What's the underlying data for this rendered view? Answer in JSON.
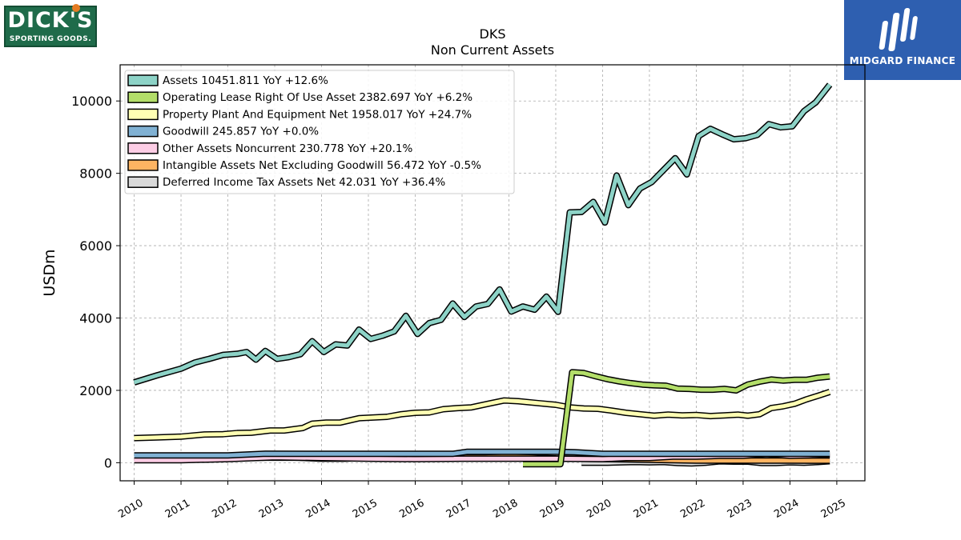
{
  "logos": {
    "left_big": "DICK'S",
    "left_small": "SPORTING GOODS.",
    "right_name": "MIDGARD FINANCE"
  },
  "chart_data": {
    "type": "line",
    "title": "DKS",
    "subtitle": "Non Current  Assets",
    "ylabel": "USDm",
    "xlabel": "",
    "xlim": [
      2009.7,
      2025.6
    ],
    "ylim": [
      -500,
      11000
    ],
    "yticks": [
      0,
      2000,
      4000,
      6000,
      8000,
      10000
    ],
    "xticks": [
      2010,
      2011,
      2012,
      2013,
      2014,
      2015,
      2016,
      2017,
      2018,
      2019,
      2020,
      2021,
      2022,
      2023,
      2024,
      2025
    ],
    "grid": true,
    "legend_position": "top-left",
    "series": [
      {
        "name": "Assets",
        "legend": "Assets  10451.811 YoY +12.6%",
        "color": "#8dd3c7",
        "points": [
          [
            2010.0,
            2220
          ],
          [
            2010.5,
            2420
          ],
          [
            2011.0,
            2600
          ],
          [
            2011.3,
            2770
          ],
          [
            2011.6,
            2870
          ],
          [
            2011.9,
            2980
          ],
          [
            2012.2,
            3010
          ],
          [
            2012.4,
            3060
          ],
          [
            2012.6,
            2850
          ],
          [
            2012.8,
            3090
          ],
          [
            2013.05,
            2870
          ],
          [
            2013.3,
            2920
          ],
          [
            2013.55,
            3000
          ],
          [
            2013.8,
            3360
          ],
          [
            2014.05,
            3060
          ],
          [
            2014.3,
            3270
          ],
          [
            2014.55,
            3240
          ],
          [
            2014.8,
            3680
          ],
          [
            2015.05,
            3420
          ],
          [
            2015.3,
            3510
          ],
          [
            2015.55,
            3630
          ],
          [
            2015.8,
            4060
          ],
          [
            2016.05,
            3560
          ],
          [
            2016.3,
            3860
          ],
          [
            2016.55,
            3950
          ],
          [
            2016.8,
            4400
          ],
          [
            2017.05,
            4030
          ],
          [
            2017.3,
            4320
          ],
          [
            2017.55,
            4390
          ],
          [
            2017.8,
            4790
          ],
          [
            2018.05,
            4180
          ],
          [
            2018.3,
            4320
          ],
          [
            2018.55,
            4230
          ],
          [
            2018.8,
            4590
          ],
          [
            2019.05,
            4170
          ],
          [
            2019.3,
            6920
          ],
          [
            2019.55,
            6930
          ],
          [
            2019.8,
            7210
          ],
          [
            2020.05,
            6640
          ],
          [
            2020.3,
            7940
          ],
          [
            2020.55,
            7120
          ],
          [
            2020.8,
            7580
          ],
          [
            2021.05,
            7760
          ],
          [
            2021.3,
            8090
          ],
          [
            2021.55,
            8420
          ],
          [
            2021.8,
            7970
          ],
          [
            2022.05,
            9030
          ],
          [
            2022.3,
            9230
          ],
          [
            2022.55,
            9080
          ],
          [
            2022.8,
            8940
          ],
          [
            2023.05,
            8970
          ],
          [
            2023.3,
            9060
          ],
          [
            2023.55,
            9360
          ],
          [
            2023.8,
            9270
          ],
          [
            2024.05,
            9300
          ],
          [
            2024.3,
            9720
          ],
          [
            2024.55,
            9960
          ],
          [
            2024.85,
            10452
          ]
        ]
      },
      {
        "name": "Operating Lease Right Of Use Asset",
        "legend": "Operating Lease Right Of Use Asset  2382.697 YoY +6.2%",
        "color": "#b3de69",
        "points": [
          [
            2018.3,
            -40
          ],
          [
            2018.55,
            -40
          ],
          [
            2018.8,
            -40
          ],
          [
            2019.1,
            -40
          ],
          [
            2019.35,
            2500
          ],
          [
            2019.6,
            2480
          ],
          [
            2019.85,
            2390
          ],
          [
            2020.1,
            2310
          ],
          [
            2020.35,
            2250
          ],
          [
            2020.6,
            2200
          ],
          [
            2020.85,
            2160
          ],
          [
            2021.1,
            2140
          ],
          [
            2021.35,
            2130
          ],
          [
            2021.6,
            2050
          ],
          [
            2021.85,
            2040
          ],
          [
            2022.1,
            2020
          ],
          [
            2022.35,
            2020
          ],
          [
            2022.6,
            2040
          ],
          [
            2022.85,
            2000
          ],
          [
            2023.1,
            2160
          ],
          [
            2023.35,
            2240
          ],
          [
            2023.6,
            2300
          ],
          [
            2023.85,
            2270
          ],
          [
            2024.1,
            2290
          ],
          [
            2024.35,
            2290
          ],
          [
            2024.6,
            2350
          ],
          [
            2024.85,
            2383
          ]
        ]
      },
      {
        "name": "Property Plant And Equipment Net",
        "legend": "Property Plant And Equipment Net  1958.017 YoY +24.7%",
        "color": "#ffffb3",
        "points": [
          [
            2010.0,
            680
          ],
          [
            2010.5,
            700
          ],
          [
            2011.0,
            720
          ],
          [
            2011.5,
            780
          ],
          [
            2011.9,
            790
          ],
          [
            2012.2,
            820
          ],
          [
            2012.5,
            830
          ],
          [
            2012.9,
            890
          ],
          [
            2013.2,
            890
          ],
          [
            2013.6,
            960
          ],
          [
            2013.8,
            1080
          ],
          [
            2014.1,
            1110
          ],
          [
            2014.4,
            1110
          ],
          [
            2014.8,
            1230
          ],
          [
            2015.1,
            1250
          ],
          [
            2015.4,
            1270
          ],
          [
            2015.7,
            1340
          ],
          [
            2016.0,
            1380
          ],
          [
            2016.3,
            1390
          ],
          [
            2016.6,
            1480
          ],
          [
            2016.9,
            1510
          ],
          [
            2017.2,
            1530
          ],
          [
            2017.6,
            1640
          ],
          [
            2017.9,
            1720
          ],
          [
            2018.2,
            1700
          ],
          [
            2018.6,
            1650
          ],
          [
            2019.0,
            1600
          ],
          [
            2019.3,
            1530
          ],
          [
            2019.6,
            1500
          ],
          [
            2019.9,
            1490
          ],
          [
            2020.2,
            1440
          ],
          [
            2020.5,
            1380
          ],
          [
            2020.8,
            1340
          ],
          [
            2021.1,
            1300
          ],
          [
            2021.4,
            1330
          ],
          [
            2021.7,
            1310
          ],
          [
            2022.0,
            1320
          ],
          [
            2022.3,
            1290
          ],
          [
            2022.6,
            1310
          ],
          [
            2022.9,
            1330
          ],
          [
            2023.1,
            1300
          ],
          [
            2023.35,
            1340
          ],
          [
            2023.6,
            1510
          ],
          [
            2023.85,
            1560
          ],
          [
            2024.1,
            1630
          ],
          [
            2024.35,
            1750
          ],
          [
            2024.6,
            1850
          ],
          [
            2024.85,
            1958
          ]
        ]
      },
      {
        "name": "Goodwill",
        "legend": "Goodwill  245.857 YoY +0.0%",
        "color": "#80b1d3",
        "points": [
          [
            2010.0,
            200
          ],
          [
            2011.0,
            200
          ],
          [
            2012.0,
            200
          ],
          [
            2012.8,
            250
          ],
          [
            2013.8,
            245
          ],
          [
            2015.0,
            245
          ],
          [
            2016.0,
            245
          ],
          [
            2016.8,
            245
          ],
          [
            2017.1,
            300
          ],
          [
            2018.0,
            300
          ],
          [
            2019.0,
            300
          ],
          [
            2019.4,
            290
          ],
          [
            2020.0,
            246
          ],
          [
            2021.0,
            246
          ],
          [
            2022.0,
            246
          ],
          [
            2023.0,
            246
          ],
          [
            2024.0,
            246
          ],
          [
            2024.85,
            246
          ]
        ]
      },
      {
        "name": "Other Assets Noncurrent",
        "legend": "Other Assets Noncurrent  230.778 YoY +20.1%",
        "color": "#fccde5",
        "points": [
          [
            2010.0,
            70
          ],
          [
            2011.0,
            70
          ],
          [
            2012.0,
            100
          ],
          [
            2013.0,
            150
          ],
          [
            2014.0,
            130
          ],
          [
            2015.0,
            110
          ],
          [
            2016.0,
            100
          ],
          [
            2017.0,
            110
          ],
          [
            2018.0,
            110
          ],
          [
            2019.0,
            110
          ],
          [
            2020.0,
            100
          ],
          [
            2020.5,
            130
          ],
          [
            2021.0,
            130
          ],
          [
            2021.5,
            170
          ],
          [
            2022.0,
            170
          ],
          [
            2022.5,
            190
          ],
          [
            2023.0,
            190
          ],
          [
            2023.5,
            240
          ],
          [
            2024.0,
            190
          ],
          [
            2024.4,
            200
          ],
          [
            2024.85,
            231
          ]
        ]
      },
      {
        "name": "Intangible Assets Net Excluding Goodwill",
        "legend": "Intangible Assets Net Excluding Goodwill  56.472 YoY -0.5%",
        "color": "#fdb462",
        "points": [
          [
            2010.0,
            100
          ],
          [
            2010.5,
            100
          ],
          [
            2011.0,
            100
          ],
          [
            2011.5,
            100
          ],
          [
            2012.0,
            110
          ],
          [
            2012.5,
            140
          ],
          [
            2013.0,
            140
          ],
          [
            2013.5,
            140
          ],
          [
            2014.0,
            110
          ],
          [
            2014.5,
            110
          ],
          [
            2015.0,
            140
          ],
          [
            2015.5,
            140
          ],
          [
            2016.0,
            140
          ],
          [
            2016.5,
            160
          ],
          [
            2017.0,
            150
          ],
          [
            2017.5,
            150
          ],
          [
            2018.0,
            170
          ],
          [
            2018.5,
            150
          ],
          [
            2019.0,
            120
          ],
          [
            2019.5,
            110
          ],
          [
            2020.0,
            100
          ],
          [
            2020.5,
            90
          ],
          [
            2021.0,
            80
          ],
          [
            2021.5,
            70
          ],
          [
            2022.0,
            60
          ],
          [
            2022.5,
            60
          ],
          [
            2023.0,
            60
          ],
          [
            2023.5,
            60
          ],
          [
            2024.0,
            57
          ],
          [
            2024.85,
            56
          ]
        ]
      },
      {
        "name": "Deferred Income Tax Assets Net",
        "legend": "Deferred Income Tax Assets Net  42.031 YoY +36.4%",
        "color": "#d9d9d9",
        "points": [
          [
            2019.55,
            0
          ],
          [
            2019.8,
            0
          ],
          [
            2020.1,
            0
          ],
          [
            2020.4,
            10
          ],
          [
            2020.7,
            20
          ],
          [
            2021.0,
            10
          ],
          [
            2021.3,
            20
          ],
          [
            2021.6,
            -10
          ],
          [
            2021.9,
            -20
          ],
          [
            2022.2,
            0
          ],
          [
            2022.5,
            40
          ],
          [
            2022.8,
            30
          ],
          [
            2023.1,
            30
          ],
          [
            2023.4,
            -10
          ],
          [
            2023.7,
            -10
          ],
          [
            2024.0,
            10
          ],
          [
            2024.3,
            0
          ],
          [
            2024.6,
            20
          ],
          [
            2024.85,
            42
          ]
        ]
      }
    ]
  }
}
